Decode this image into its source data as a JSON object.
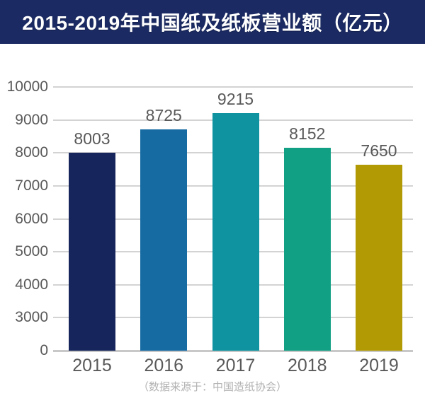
{
  "header": {
    "title": "2015-2019年中国纸及纸板营业额（亿元）",
    "bg_color": "#1b2a63",
    "text_color": "#ffffff"
  },
  "chart_data": {
    "type": "bar",
    "title": "2015-2019年中国纸及纸板营业额（亿元）",
    "categories": [
      "2015",
      "2016",
      "2017",
      "2018",
      "2019"
    ],
    "values": [
      8003,
      8725,
      9215,
      8152,
      7650
    ],
    "bar_colors": [
      "#16265c",
      "#176ba3",
      "#0f93a0",
      "#12a084",
      "#b19a04"
    ],
    "yticks": [
      0,
      3000,
      4000,
      5000,
      6000,
      7000,
      8000,
      9000,
      10000
    ],
    "ylim": [
      0,
      10000
    ],
    "broken_axis": true,
    "grid": true,
    "value_labels_shown": true,
    "legend": "none",
    "xlabel": "",
    "ylabel": ""
  },
  "footer": {
    "source_note": "（数据来源于：中国造纸协会）"
  }
}
